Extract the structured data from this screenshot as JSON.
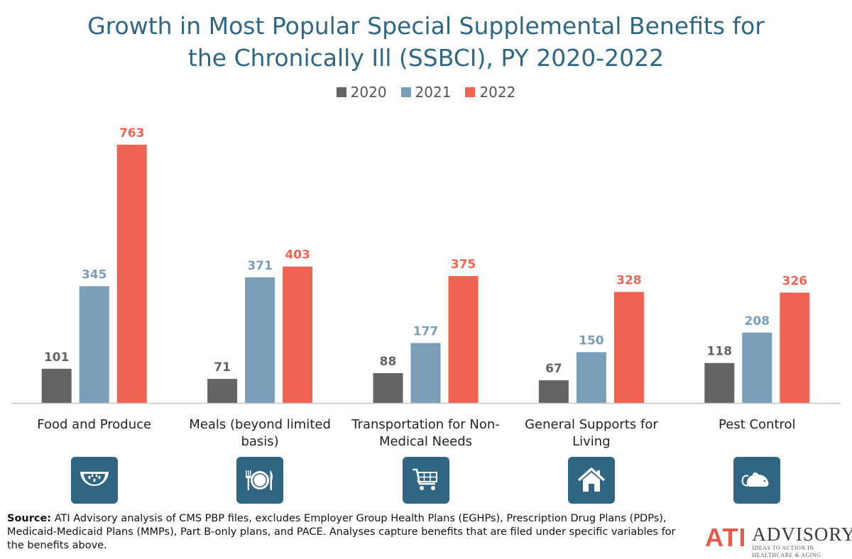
{
  "chart_data": {
    "type": "bar",
    "title": "Growth in Most Popular Special Supplemental Benefits for the Chronically Ill (SSBCI), PY 2020-2022",
    "title_lines": [
      "Growth in Most Popular Special Supplemental Benefits for",
      "the Chronically Ill (SSBCI), PY 2020-2022"
    ],
    "categories": [
      "Food and Produce",
      "Meals (beyond limited basis)",
      "Transportation for Non-Medical Needs",
      "General Supports for Living",
      "Pest Control"
    ],
    "category_lines": [
      [
        "Food and Produce"
      ],
      [
        "Meals (beyond limited",
        "basis)"
      ],
      [
        "Transportation for Non-",
        "Medical Needs"
      ],
      [
        "General Supports for",
        "Living"
      ],
      [
        "Pest Control"
      ]
    ],
    "series": [
      {
        "name": "2020",
        "color": "#646464",
        "values": [
          101,
          71,
          88,
          67,
          118
        ]
      },
      {
        "name": "2021",
        "color": "#7b9eb8",
        "values": [
          345,
          371,
          177,
          150,
          208
        ]
      },
      {
        "name": "2022",
        "color": "#ee6352",
        "values": [
          763,
          403,
          375,
          328,
          326
        ]
      }
    ],
    "ylim": [
      0,
      780
    ],
    "grid": false,
    "legend_position": "top-center",
    "data_labels": true
  },
  "icons": [
    "watermelon-icon",
    "plate-utensils-icon",
    "shopping-cart-icon",
    "house-icon",
    "mouse-icon"
  ],
  "colors": {
    "title": "#2e6684",
    "icon_bg": "#2e6684",
    "logo_accent": "#e65a4c"
  },
  "source": {
    "label": "Source:",
    "text": " ATI Advisory analysis of CMS PBP files, excludes Employer Group Health Plans (EGHPs), Prescription Drug Plans (PDPs), Medicaid-Medicaid Plans (MMPs), Part B-only plans, and PACE. Analyses capture benefits that are filed under specific variables for the benefits above."
  },
  "logo": {
    "mark": "ATI",
    "name": "ADVISORY",
    "tagline": "IDEAS TO ACTION IN HEALTHCARE & AGING"
  }
}
